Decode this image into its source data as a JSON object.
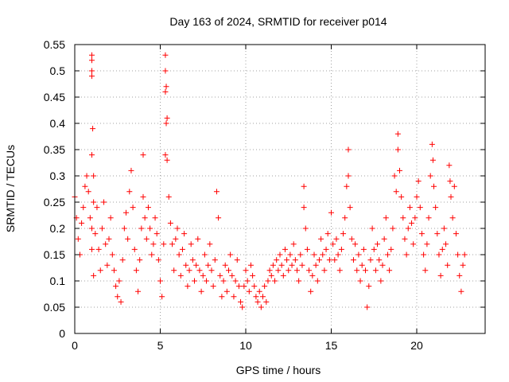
{
  "chart_data": {
    "type": "scatter",
    "title": "Day 163 of 2024, SRMTID for receiver p014",
    "xlabel": "GPS time / hours",
    "ylabel": "SRMTID / TECUs",
    "xlim": [
      0,
      24
    ],
    "ylim": [
      0,
      0.55
    ],
    "x_ticks": [
      0,
      5,
      10,
      15,
      20
    ],
    "x_tick_labels": [
      "0",
      "5",
      "10",
      "15",
      "20"
    ],
    "y_ticks": [
      0,
      0.05,
      0.1,
      0.15,
      0.2,
      0.25,
      0.3,
      0.35,
      0.4,
      0.45,
      0.5,
      0.55
    ],
    "y_tick_labels": [
      "0",
      "0.05",
      "0.1",
      "0.15",
      "0.2",
      "0.25",
      "0.3",
      "0.35",
      "0.4",
      "0.45",
      "0.5",
      "0.55"
    ],
    "grid": true,
    "marker": "+",
    "color": "#ff0000",
    "series": [
      {
        "name": "SRMTID",
        "points": [
          [
            0.0,
            0.26
          ],
          [
            0.1,
            0.22
          ],
          [
            0.2,
            0.18
          ],
          [
            0.3,
            0.15
          ],
          [
            0.4,
            0.21
          ],
          [
            0.5,
            0.24
          ],
          [
            0.6,
            0.28
          ],
          [
            0.7,
            0.3
          ],
          [
            0.8,
            0.27
          ],
          [
            0.9,
            0.22
          ],
          [
            1.0,
            0.53
          ],
          [
            1.0,
            0.52
          ],
          [
            1.0,
            0.5
          ],
          [
            1.0,
            0.49
          ],
          [
            1.05,
            0.39
          ],
          [
            1.0,
            0.34
          ],
          [
            1.1,
            0.3
          ],
          [
            1.1,
            0.25
          ],
          [
            1.0,
            0.2
          ],
          [
            1.0,
            0.16
          ],
          [
            1.1,
            0.11
          ],
          [
            1.2,
            0.19
          ],
          [
            1.3,
            0.24
          ],
          [
            1.4,
            0.16
          ],
          [
            1.5,
            0.12
          ],
          [
            1.6,
            0.2
          ],
          [
            1.7,
            0.25
          ],
          [
            1.8,
            0.17
          ],
          [
            1.9,
            0.13
          ],
          [
            2.0,
            0.18
          ],
          [
            2.1,
            0.22
          ],
          [
            2.2,
            0.15
          ],
          [
            2.3,
            0.12
          ],
          [
            2.4,
            0.09
          ],
          [
            2.5,
            0.07
          ],
          [
            2.6,
            0.1
          ],
          [
            2.7,
            0.06
          ],
          [
            2.8,
            0.14
          ],
          [
            2.9,
            0.2
          ],
          [
            3.0,
            0.23
          ],
          [
            3.1,
            0.18
          ],
          [
            3.2,
            0.27
          ],
          [
            3.3,
            0.31
          ],
          [
            3.4,
            0.24
          ],
          [
            3.5,
            0.16
          ],
          [
            3.6,
            0.12
          ],
          [
            3.7,
            0.08
          ],
          [
            3.8,
            0.14
          ],
          [
            3.9,
            0.2
          ],
          [
            4.0,
            0.34
          ],
          [
            4.0,
            0.26
          ],
          [
            4.1,
            0.22
          ],
          [
            4.2,
            0.18
          ],
          [
            4.3,
            0.24
          ],
          [
            4.4,
            0.2
          ],
          [
            4.5,
            0.15
          ],
          [
            4.6,
            0.17
          ],
          [
            4.7,
            0.22
          ],
          [
            4.8,
            0.19
          ],
          [
            4.9,
            0.14
          ],
          [
            5.0,
            0.1
          ],
          [
            5.1,
            0.07
          ],
          [
            5.2,
            0.17
          ],
          [
            5.3,
            0.53
          ],
          [
            5.3,
            0.5
          ],
          [
            5.35,
            0.47
          ],
          [
            5.3,
            0.46
          ],
          [
            5.4,
            0.41
          ],
          [
            5.35,
            0.4
          ],
          [
            5.3,
            0.34
          ],
          [
            5.4,
            0.33
          ],
          [
            5.5,
            0.26
          ],
          [
            5.6,
            0.21
          ],
          [
            5.7,
            0.17
          ],
          [
            5.8,
            0.12
          ],
          [
            5.9,
            0.18
          ],
          [
            6.0,
            0.2
          ],
          [
            6.1,
            0.15
          ],
          [
            6.2,
            0.11
          ],
          [
            6.3,
            0.16
          ],
          [
            6.4,
            0.19
          ],
          [
            6.5,
            0.13
          ],
          [
            6.6,
            0.09
          ],
          [
            6.7,
            0.12
          ],
          [
            6.8,
            0.17
          ],
          [
            6.9,
            0.14
          ],
          [
            7.0,
            0.1
          ],
          [
            7.1,
            0.13
          ],
          [
            7.2,
            0.18
          ],
          [
            7.3,
            0.12
          ],
          [
            7.4,
            0.08
          ],
          [
            7.5,
            0.11
          ],
          [
            7.6,
            0.15
          ],
          [
            7.7,
            0.1
          ],
          [
            7.8,
            0.13
          ],
          [
            7.9,
            0.17
          ],
          [
            8.0,
            0.12
          ],
          [
            8.1,
            0.09
          ],
          [
            8.2,
            0.14
          ],
          [
            8.3,
            0.27
          ],
          [
            8.4,
            0.22
          ],
          [
            8.5,
            0.11
          ],
          [
            8.6,
            0.07
          ],
          [
            8.7,
            0.1
          ],
          [
            8.8,
            0.13
          ],
          [
            8.9,
            0.08
          ],
          [
            9.0,
            0.12
          ],
          [
            9.1,
            0.15
          ],
          [
            9.2,
            0.11
          ],
          [
            9.3,
            0.07
          ],
          [
            9.4,
            0.1
          ],
          [
            9.5,
            0.14
          ],
          [
            9.6,
            0.09
          ],
          [
            9.7,
            0.06
          ],
          [
            9.8,
            0.05
          ],
          [
            9.9,
            0.09
          ],
          [
            10.0,
            0.12
          ],
          [
            10.1,
            0.1
          ],
          [
            10.2,
            0.08
          ],
          [
            10.3,
            0.13
          ],
          [
            10.4,
            0.11
          ],
          [
            10.5,
            0.09
          ],
          [
            10.6,
            0.07
          ],
          [
            10.7,
            0.06
          ],
          [
            10.8,
            0.08
          ],
          [
            10.9,
            0.05
          ],
          [
            11.0,
            0.07
          ],
          [
            11.1,
            0.09
          ],
          [
            11.2,
            0.06
          ],
          [
            11.3,
            0.1
          ],
          [
            11.4,
            0.12
          ],
          [
            11.5,
            0.11
          ],
          [
            11.6,
            0.13
          ],
          [
            11.7,
            0.1
          ],
          [
            11.8,
            0.14
          ],
          [
            11.9,
            0.12
          ],
          [
            12.0,
            0.15
          ],
          [
            12.1,
            0.13
          ],
          [
            12.2,
            0.11
          ],
          [
            12.3,
            0.16
          ],
          [
            12.4,
            0.14
          ],
          [
            12.5,
            0.12
          ],
          [
            12.6,
            0.15
          ],
          [
            12.7,
            0.13
          ],
          [
            12.8,
            0.17
          ],
          [
            12.9,
            0.14
          ],
          [
            13.0,
            0.12
          ],
          [
            13.1,
            0.1
          ],
          [
            13.2,
            0.15
          ],
          [
            13.3,
            0.13
          ],
          [
            13.4,
            0.28
          ],
          [
            13.4,
            0.24
          ],
          [
            13.5,
            0.2
          ],
          [
            13.6,
            0.16
          ],
          [
            13.7,
            0.12
          ],
          [
            13.8,
            0.08
          ],
          [
            13.9,
            0.11
          ],
          [
            14.0,
            0.15
          ],
          [
            14.1,
            0.13
          ],
          [
            14.2,
            0.1
          ],
          [
            14.3,
            0.14
          ],
          [
            14.4,
            0.18
          ],
          [
            14.5,
            0.15
          ],
          [
            14.6,
            0.12
          ],
          [
            14.7,
            0.16
          ],
          [
            14.8,
            0.19
          ],
          [
            14.9,
            0.14
          ],
          [
            15.0,
            0.23
          ],
          [
            15.1,
            0.17
          ],
          [
            15.2,
            0.14
          ],
          [
            15.3,
            0.18
          ],
          [
            15.4,
            0.15
          ],
          [
            15.5,
            0.12
          ],
          [
            15.6,
            0.16
          ],
          [
            15.7,
            0.19
          ],
          [
            15.8,
            0.22
          ],
          [
            15.9,
            0.28
          ],
          [
            16.0,
            0.35
          ],
          [
            16.0,
            0.3
          ],
          [
            16.1,
            0.24
          ],
          [
            16.2,
            0.18
          ],
          [
            16.3,
            0.14
          ],
          [
            16.4,
            0.17
          ],
          [
            16.5,
            0.12
          ],
          [
            16.6,
            0.15
          ],
          [
            16.7,
            0.1
          ],
          [
            16.8,
            0.13
          ],
          [
            16.9,
            0.16
          ],
          [
            17.0,
            0.12
          ],
          [
            17.1,
            0.05
          ],
          [
            17.2,
            0.09
          ],
          [
            17.3,
            0.14
          ],
          [
            17.4,
            0.2
          ],
          [
            17.5,
            0.16
          ],
          [
            17.6,
            0.12
          ],
          [
            17.7,
            0.17
          ],
          [
            17.8,
            0.14
          ],
          [
            17.9,
            0.1
          ],
          [
            18.0,
            0.13
          ],
          [
            18.1,
            0.18
          ],
          [
            18.2,
            0.22
          ],
          [
            18.3,
            0.15
          ],
          [
            18.4,
            0.12
          ],
          [
            18.5,
            0.16
          ],
          [
            18.6,
            0.2
          ],
          [
            18.7,
            0.3
          ],
          [
            18.8,
            0.27
          ],
          [
            18.9,
            0.38
          ],
          [
            18.9,
            0.35
          ],
          [
            19.0,
            0.31
          ],
          [
            19.1,
            0.26
          ],
          [
            19.2,
            0.22
          ],
          [
            19.3,
            0.18
          ],
          [
            19.4,
            0.15
          ],
          [
            19.5,
            0.2
          ],
          [
            19.6,
            0.24
          ],
          [
            19.7,
            0.21
          ],
          [
            19.8,
            0.17
          ],
          [
            19.9,
            0.22
          ],
          [
            20.0,
            0.26
          ],
          [
            20.1,
            0.29
          ],
          [
            20.2,
            0.24
          ],
          [
            20.3,
            0.19
          ],
          [
            20.4,
            0.15
          ],
          [
            20.5,
            0.12
          ],
          [
            20.6,
            0.17
          ],
          [
            20.7,
            0.22
          ],
          [
            20.8,
            0.3
          ],
          [
            20.9,
            0.36
          ],
          [
            20.95,
            0.33
          ],
          [
            21.0,
            0.28
          ],
          [
            21.1,
            0.24
          ],
          [
            21.2,
            0.19
          ],
          [
            21.3,
            0.15
          ],
          [
            21.4,
            0.11
          ],
          [
            21.5,
            0.16
          ],
          [
            21.6,
            0.2
          ],
          [
            21.7,
            0.17
          ],
          [
            21.8,
            0.13
          ],
          [
            21.9,
            0.32
          ],
          [
            21.95,
            0.29
          ],
          [
            22.0,
            0.26
          ],
          [
            22.1,
            0.22
          ],
          [
            22.2,
            0.28
          ],
          [
            22.3,
            0.19
          ],
          [
            22.4,
            0.15
          ],
          [
            22.5,
            0.11
          ],
          [
            22.6,
            0.08
          ],
          [
            22.7,
            0.13
          ],
          [
            22.8,
            0.15
          ]
        ]
      }
    ]
  }
}
